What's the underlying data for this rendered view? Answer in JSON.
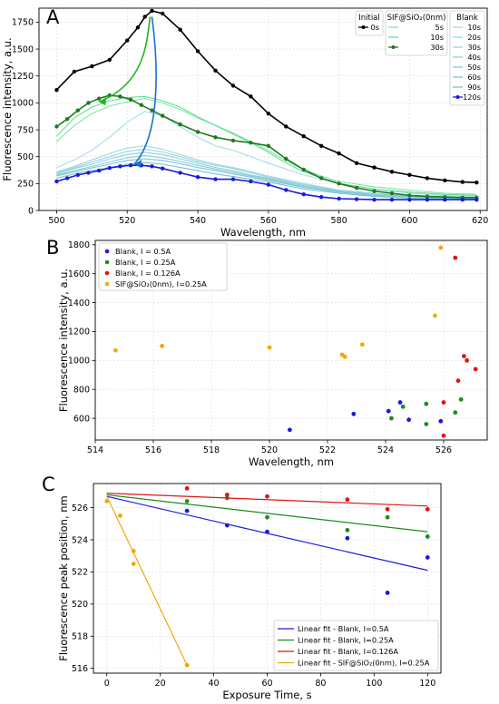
{
  "chart_data": [
    {
      "panel": "A",
      "type": "line",
      "xlabel": "Wavelength, nm",
      "ylabel": "Fluorescence intensity, a.u.",
      "xlim": [
        495,
        622
      ],
      "ylim": [
        0,
        1880
      ],
      "x_ticks": [
        500,
        520,
        540,
        560,
        580,
        600,
        620
      ],
      "y_ticks": [
        0,
        250,
        500,
        750,
        1000,
        1250,
        1500,
        1750
      ],
      "grid": true,
      "legend_position": "top-right",
      "legend_groups": [
        {
          "title": "Initial",
          "entries": [
            "0s"
          ]
        },
        {
          "title": "SIF@SiO₂(0nm)",
          "entries": [
            "5s",
            "10s",
            "30s"
          ]
        },
        {
          "title": "Blank",
          "entries": [
            "10s",
            "20s",
            "30s",
            "40s",
            "50s",
            "60s",
            "90s",
            "120s"
          ]
        }
      ],
      "series": [
        {
          "group": "Initial",
          "name": "0s",
          "color": "#000000",
          "markers": true,
          "x": [
            500,
            505,
            510,
            515,
            520,
            523,
            525,
            527,
            530,
            535,
            540,
            545,
            550,
            555,
            560,
            565,
            570,
            575,
            580,
            585,
            590,
            595,
            600,
            605,
            610,
            615,
            619
          ],
          "y": [
            1120,
            1290,
            1340,
            1400,
            1580,
            1700,
            1800,
            1855,
            1830,
            1680,
            1480,
            1300,
            1160,
            1060,
            900,
            780,
            690,
            600,
            530,
            440,
            400,
            360,
            330,
            300,
            280,
            265,
            260
          ]
        },
        {
          "group": "SIF@SiO₂(0nm)",
          "name": "5s",
          "color": "#7be6a8",
          "markers": false,
          "x": [
            500,
            505,
            510,
            515,
            520,
            525,
            530,
            535,
            540,
            545,
            550,
            555,
            560,
            565,
            570,
            575,
            580,
            590,
            600,
            610,
            619
          ],
          "y": [
            640,
            790,
            900,
            970,
            1010,
            1040,
            1000,
            940,
            860,
            790,
            720,
            640,
            560,
            460,
            380,
            320,
            270,
            220,
            190,
            160,
            150
          ]
        },
        {
          "group": "SIF@SiO₂(0nm)",
          "name": "10s",
          "color": "#5fdf98",
          "markers": false,
          "x": [
            500,
            505,
            510,
            515,
            520,
            525,
            530,
            535,
            540,
            545,
            550,
            555,
            560,
            565,
            570,
            575,
            580,
            590,
            600,
            610,
            619
          ],
          "y": [
            690,
            860,
            960,
            1020,
            1050,
            1060,
            1020,
            960,
            870,
            790,
            710,
            630,
            540,
            440,
            360,
            300,
            250,
            200,
            170,
            150,
            140
          ]
        },
        {
          "group": "SIF@SiO₂(0nm)",
          "name": "30s",
          "color": "#1f7a1f",
          "markers": true,
          "x": [
            500,
            503,
            506,
            509,
            512,
            515,
            518,
            521,
            524,
            527,
            530,
            535,
            540,
            545,
            550,
            555,
            560,
            565,
            570,
            575,
            580,
            585,
            590,
            595,
            600,
            605,
            610,
            615,
            619
          ],
          "y": [
            780,
            850,
            930,
            1000,
            1040,
            1070,
            1060,
            1030,
            980,
            930,
            880,
            800,
            730,
            680,
            650,
            630,
            600,
            480,
            380,
            300,
            250,
            210,
            180,
            160,
            140,
            130,
            125,
            120,
            120
          ]
        },
        {
          "group": "Blank",
          "name": "10s",
          "color": "#a9dde7",
          "markers": false,
          "x": [
            500,
            505,
            510,
            515,
            520,
            525,
            530,
            535,
            540,
            545,
            550,
            555,
            560,
            570,
            580,
            590,
            600,
            610,
            619
          ],
          "y": [
            400,
            470,
            560,
            680,
            820,
            920,
            880,
            780,
            680,
            600,
            560,
            500,
            440,
            330,
            250,
            200,
            160,
            140,
            130
          ]
        },
        {
          "group": "Blank",
          "name": "20s",
          "color": "#a0d8e3",
          "markers": false,
          "x": [
            500,
            505,
            510,
            515,
            520,
            525,
            530,
            535,
            540,
            545,
            550,
            555,
            560,
            570,
            580,
            590,
            600,
            610,
            619
          ],
          "y": [
            360,
            410,
            470,
            530,
            580,
            600,
            570,
            520,
            470,
            430,
            400,
            360,
            320,
            250,
            190,
            160,
            140,
            130,
            120
          ]
        },
        {
          "group": "Blank",
          "name": "30s",
          "color": "#97d3df",
          "markers": false,
          "x": [
            500,
            505,
            510,
            515,
            520,
            525,
            530,
            535,
            540,
            545,
            550,
            555,
            560,
            570,
            580,
            590,
            600,
            610,
            619
          ],
          "y": [
            350,
            400,
            450,
            500,
            550,
            570,
            545,
            500,
            455,
            420,
            390,
            350,
            310,
            240,
            190,
            160,
            140,
            130,
            120
          ]
        },
        {
          "group": "Blank",
          "name": "40s",
          "color": "#8ecfdc",
          "markers": false,
          "x": [
            500,
            505,
            510,
            515,
            520,
            525,
            530,
            535,
            540,
            545,
            550,
            555,
            560,
            570,
            580,
            590,
            600,
            610,
            619
          ],
          "y": [
            340,
            390,
            430,
            480,
            520,
            540,
            520,
            480,
            440,
            400,
            370,
            330,
            300,
            230,
            180,
            150,
            135,
            125,
            115
          ]
        },
        {
          "group": "Blank",
          "name": "50s",
          "color": "#86cad8",
          "markers": false,
          "x": [
            500,
            505,
            510,
            515,
            520,
            525,
            530,
            535,
            540,
            545,
            550,
            555,
            560,
            570,
            580,
            590,
            600,
            610,
            619
          ],
          "y": [
            330,
            370,
            410,
            450,
            490,
            510,
            490,
            455,
            420,
            385,
            355,
            320,
            290,
            220,
            175,
            145,
            130,
            120,
            110
          ]
        },
        {
          "group": "Blank",
          "name": "60s",
          "color": "#7ec6d5",
          "markers": false,
          "x": [
            500,
            505,
            510,
            515,
            520,
            525,
            530,
            535,
            540,
            545,
            550,
            555,
            560,
            570,
            580,
            590,
            600,
            610,
            619
          ],
          "y": [
            320,
            360,
            395,
            430,
            465,
            480,
            465,
            435,
            400,
            370,
            340,
            310,
            280,
            215,
            170,
            140,
            125,
            115,
            108
          ]
        },
        {
          "group": "Blank",
          "name": "90s",
          "color": "#75c1d1",
          "markers": false,
          "x": [
            500,
            505,
            510,
            515,
            520,
            525,
            530,
            535,
            540,
            545,
            550,
            555,
            560,
            570,
            580,
            590,
            600,
            610,
            619
          ],
          "y": [
            300,
            340,
            370,
            400,
            430,
            445,
            430,
            400,
            370,
            340,
            315,
            290,
            265,
            200,
            160,
            130,
            115,
            108,
            102
          ]
        },
        {
          "group": "Blank",
          "name": "120s",
          "color": "#1a1adb",
          "markers": true,
          "x": [
            500,
            503,
            506,
            509,
            512,
            515,
            518,
            521,
            524,
            527,
            530,
            535,
            540,
            545,
            550,
            555,
            560,
            565,
            570,
            575,
            580,
            585,
            590,
            595,
            600,
            605,
            610,
            615,
            619
          ],
          "y": [
            270,
            300,
            330,
            350,
            370,
            395,
            410,
            420,
            420,
            410,
            390,
            350,
            310,
            290,
            290,
            270,
            240,
            190,
            150,
            125,
            110,
            105,
            100,
            100,
            100,
            100,
            100,
            100,
            100
          ]
        }
      ],
      "arrows": [
        {
          "color": "#1fb51f",
          "from": [
            526.5,
            1800
          ],
          "to": [
            512,
            1010
          ]
        },
        {
          "color": "#1a6fd6",
          "from": [
            527,
            1800
          ],
          "to": [
            522,
            430
          ]
        }
      ]
    },
    {
      "panel": "B",
      "type": "scatter",
      "xlabel": "Wavelength, nm",
      "ylabel": "Fluorescence intensity, a.u.",
      "xlim": [
        514,
        527.5
      ],
      "ylim": [
        450,
        1830
      ],
      "x_ticks": [
        514,
        516,
        518,
        520,
        522,
        524,
        526
      ],
      "y_ticks": [
        600,
        800,
        1000,
        1200,
        1400,
        1600,
        1800
      ],
      "grid": true,
      "legend_position": "top-left",
      "series": [
        {
          "name": "Blank, I = 0.5A",
          "color": "#1a1adb",
          "points": [
            [
              520.7,
              520
            ],
            [
              522.9,
              630
            ],
            [
              524.1,
              650
            ],
            [
              524.5,
              710
            ],
            [
              524.8,
              590
            ],
            [
              525.9,
              580
            ]
          ]
        },
        {
          "name": "Blank, I = 0.25A",
          "color": "#1e8c1e",
          "points": [
            [
              524.2,
              600
            ],
            [
              524.6,
              680
            ],
            [
              525.4,
              700
            ],
            [
              525.4,
              560
            ],
            [
              526.4,
              640
            ],
            [
              526.6,
              730
            ]
          ]
        },
        {
          "name": "Blank, I = 0.126A",
          "color": "#e01414",
          "points": [
            [
              526.0,
              710
            ],
            [
              526.0,
              480
            ],
            [
              526.4,
              1710
            ],
            [
              526.5,
              860
            ],
            [
              526.7,
              1030
            ],
            [
              526.8,
              1000
            ],
            [
              527.1,
              940
            ]
          ]
        },
        {
          "name": "SIF@SiO₂(0nm), I=0.25A",
          "color": "#f4a70a",
          "points": [
            [
              514.7,
              1070
            ],
            [
              516.3,
              1100
            ],
            [
              520.0,
              1090
            ],
            [
              522.5,
              1040
            ],
            [
              522.6,
              1025
            ],
            [
              523.2,
              1110
            ],
            [
              525.7,
              1310
            ],
            [
              525.9,
              1780
            ]
          ]
        }
      ]
    },
    {
      "panel": "C",
      "type": "scatter",
      "xlabel": "Exposure Time, s",
      "ylabel": "Fluorescence peak position, nm",
      "xlim": [
        -5,
        125
      ],
      "ylim": [
        515.7,
        527.5
      ],
      "x_ticks": [
        0,
        20,
        40,
        60,
        80,
        100,
        120
      ],
      "y_ticks": [
        516,
        518,
        520,
        522,
        524,
        526
      ],
      "grid": true,
      "legend_position": "bottom-right",
      "series": [
        {
          "name": "Linear fit - Blank, I=0.5A",
          "color": "#1a1adb",
          "points": [
            [
              30,
              525.8
            ],
            [
              45,
              524.9
            ],
            [
              60,
              524.5
            ],
            [
              90,
              524.1
            ],
            [
              105,
              520.7
            ],
            [
              120,
              522.9
            ]
          ],
          "fit": [
            [
              0,
              526.7
            ],
            [
              120,
              522.1
            ]
          ]
        },
        {
          "name": "Linear fit - Blank, I=0.25A",
          "color": "#1e8c1e",
          "points": [
            [
              30,
              526.4
            ],
            [
              45,
              526.6
            ],
            [
              60,
              525.4
            ],
            [
              90,
              524.6
            ],
            [
              105,
              525.4
            ],
            [
              120,
              524.2
            ]
          ],
          "fit": [
            [
              0,
              526.8
            ],
            [
              120,
              524.5
            ]
          ]
        },
        {
          "name": "Linear fit - Blank, I=0.126A",
          "color": "#e01414",
          "points": [
            [
              30,
              527.2
            ],
            [
              45,
              526.8
            ],
            [
              60,
              526.7
            ],
            [
              90,
              526.5
            ],
            [
              105,
              525.9
            ],
            [
              120,
              525.9
            ]
          ],
          "fit": [
            [
              0,
              526.9
            ],
            [
              120,
              526.1
            ]
          ]
        },
        {
          "name": "Linear fit - SIF@SiO₂(0nm), I=0.25A",
          "color": "#f4a70a",
          "points": [
            [
              0,
              526.4
            ],
            [
              5,
              525.5
            ],
            [
              10,
              523.3
            ],
            [
              10,
              522.5
            ],
            [
              30,
              516.2
            ]
          ],
          "fit": [
            [
              0,
              526.7
            ],
            [
              30,
              516.2
            ]
          ]
        }
      ]
    }
  ],
  "panels": {
    "a": {
      "letter": "A"
    },
    "b": {
      "letter": "B"
    },
    "c": {
      "letter": "C"
    }
  }
}
